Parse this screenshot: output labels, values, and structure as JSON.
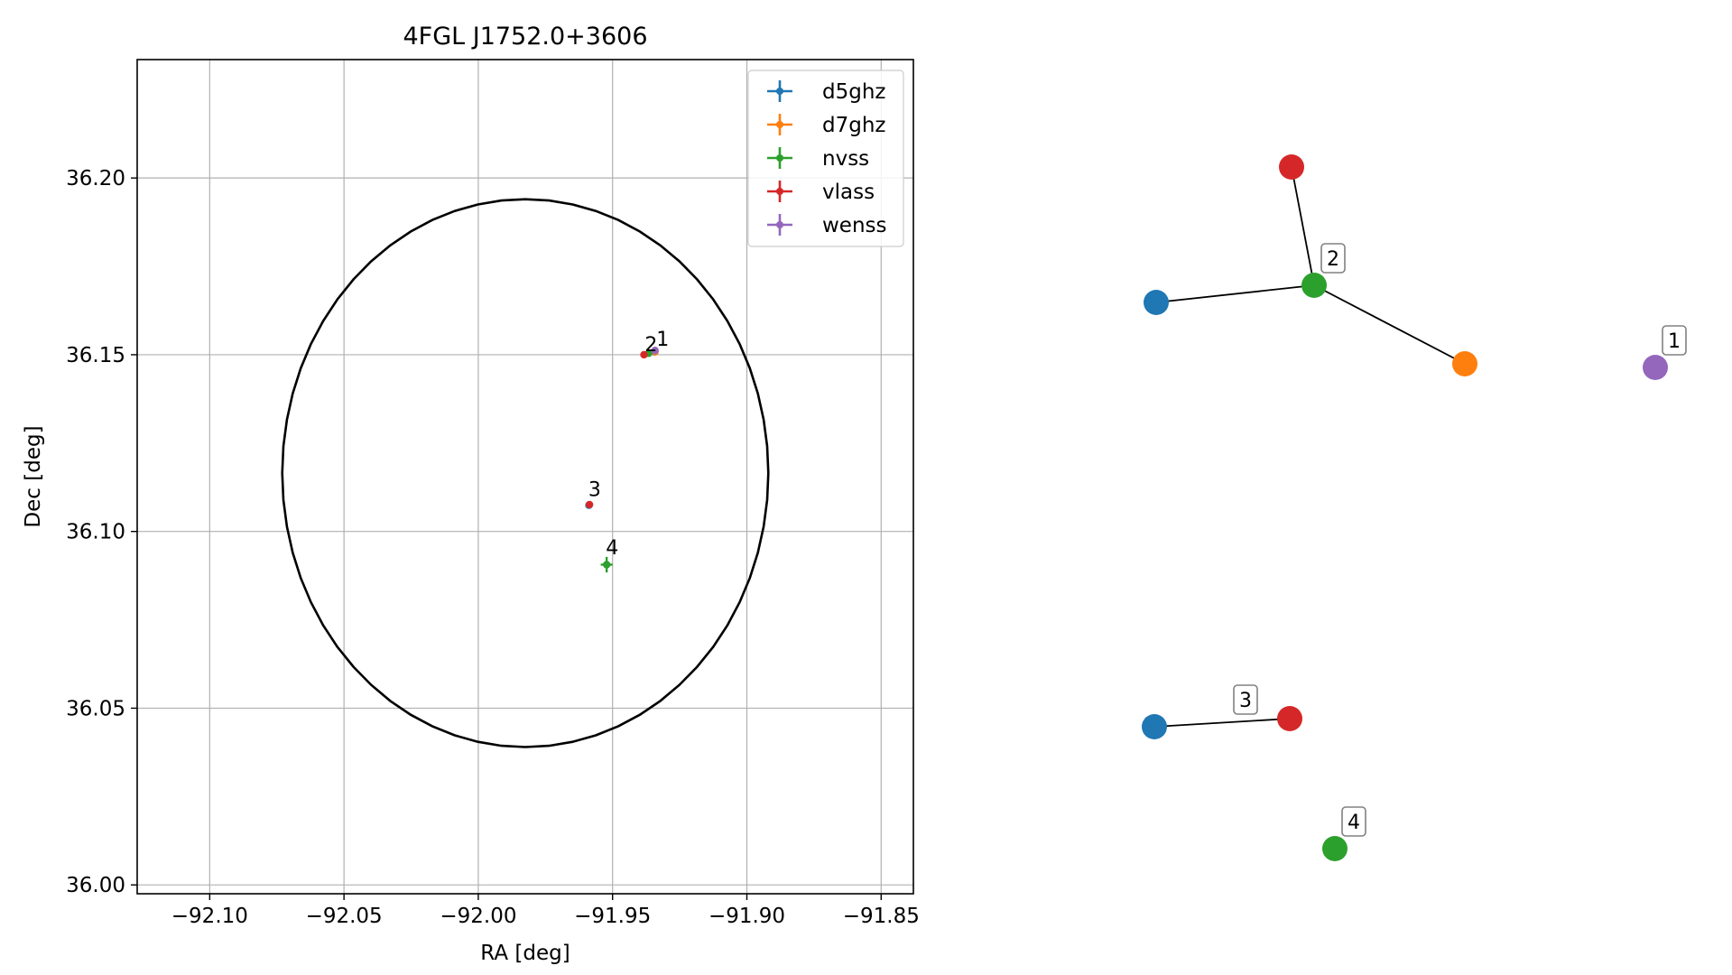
{
  "chart_data": [
    {
      "type": "scatter",
      "title": "4FGL J1752.0+3606",
      "xlabel": "RA [deg]",
      "ylabel": "Dec [deg]",
      "xlim": [
        -92.127,
        -91.838
      ],
      "ylim": [
        35.9975,
        36.2335
      ],
      "xticks": [
        -92.1,
        -92.05,
        -92.0,
        -91.95,
        -91.9,
        -91.85
      ],
      "xtick_labels": [
        "−92.10",
        "−92.05",
        "−92.00",
        "−91.95",
        "−91.90",
        "−91.85"
      ],
      "yticks": [
        36.0,
        36.05,
        36.1,
        36.15,
        36.2
      ],
      "ytick_labels": [
        "36.00",
        "36.05",
        "36.10",
        "36.15",
        "36.20"
      ],
      "grid": true,
      "legend_position": "top-right",
      "error_ellipse": {
        "center": [
          -91.9825,
          36.1165
        ],
        "semi_axis_ra": 0.0905,
        "semi_axis_dec": 0.0775,
        "color": "#000000"
      },
      "series": [
        {
          "name": "d5ghz",
          "color": "#1f77b4",
          "points": [
            {
              "x": -91.9345,
              "y": 36.1508,
              "xerr": 0.0005,
              "yerr": 0.0004
            },
            {
              "x": -91.9588,
              "y": 36.1074,
              "xerr": 0.0005,
              "yerr": 0.0004
            }
          ]
        },
        {
          "name": "d7ghz",
          "color": "#ff7f0e",
          "points": [
            {
              "x": -91.9342,
              "y": 36.1508,
              "xerr": 0.0005,
              "yerr": 0.0004
            }
          ]
        },
        {
          "name": "nvss",
          "color": "#2ca02c",
          "points": [
            {
              "x": -91.9366,
              "y": 36.1504,
              "xerr": 0.0007,
              "yerr": 0.0006
            },
            {
              "x": -91.9522,
              "y": 36.0906,
              "xerr": 0.0022,
              "yerr": 0.0022
            }
          ]
        },
        {
          "name": "vlass",
          "color": "#d62728",
          "points": [
            {
              "x": -91.9383,
              "y": 36.15,
              "xerr": 0.0004,
              "yerr": 0.0004
            },
            {
              "x": -91.9586,
              "y": 36.1076,
              "xerr": 0.0004,
              "yerr": 0.0004
            }
          ]
        },
        {
          "name": "wenss",
          "color": "#9467bd",
          "points": [
            {
              "x": -91.9342,
              "y": 36.1512,
              "xerr": 0.0012,
              "yerr": 0.001
            }
          ]
        }
      ],
      "annotations": [
        {
          "text": "1",
          "x": -91.9337,
          "y": 36.1525
        },
        {
          "text": "2",
          "x": -91.938,
          "y": 36.151
        },
        {
          "text": "3",
          "x": -91.959,
          "y": 36.11
        },
        {
          "text": "4",
          "x": -91.9525,
          "y": 36.0935
        }
      ]
    },
    {
      "type": "network",
      "nodes": [
        {
          "id": "n2-vlass",
          "color": "#d62728"
        },
        {
          "id": "n2-nvss",
          "color": "#2ca02c",
          "label": "2"
        },
        {
          "id": "n2-d5ghz",
          "color": "#1f77b4"
        },
        {
          "id": "n2-d7ghz",
          "color": "#ff7f0e"
        },
        {
          "id": "n1-wenss",
          "color": "#9467bd",
          "label": "1"
        },
        {
          "id": "n3-d5ghz",
          "color": "#1f77b4"
        },
        {
          "id": "n3-vlass",
          "color": "#d62728",
          "label": "3"
        },
        {
          "id": "n4-nvss",
          "color": "#2ca02c",
          "label": "4"
        }
      ],
      "edges": [
        [
          "n2-nvss",
          "n2-vlass"
        ],
        [
          "n2-nvss",
          "n2-d5ghz"
        ],
        [
          "n2-nvss",
          "n2-d7ghz"
        ],
        [
          "n3-d5ghz",
          "n3-vlass"
        ]
      ]
    }
  ]
}
